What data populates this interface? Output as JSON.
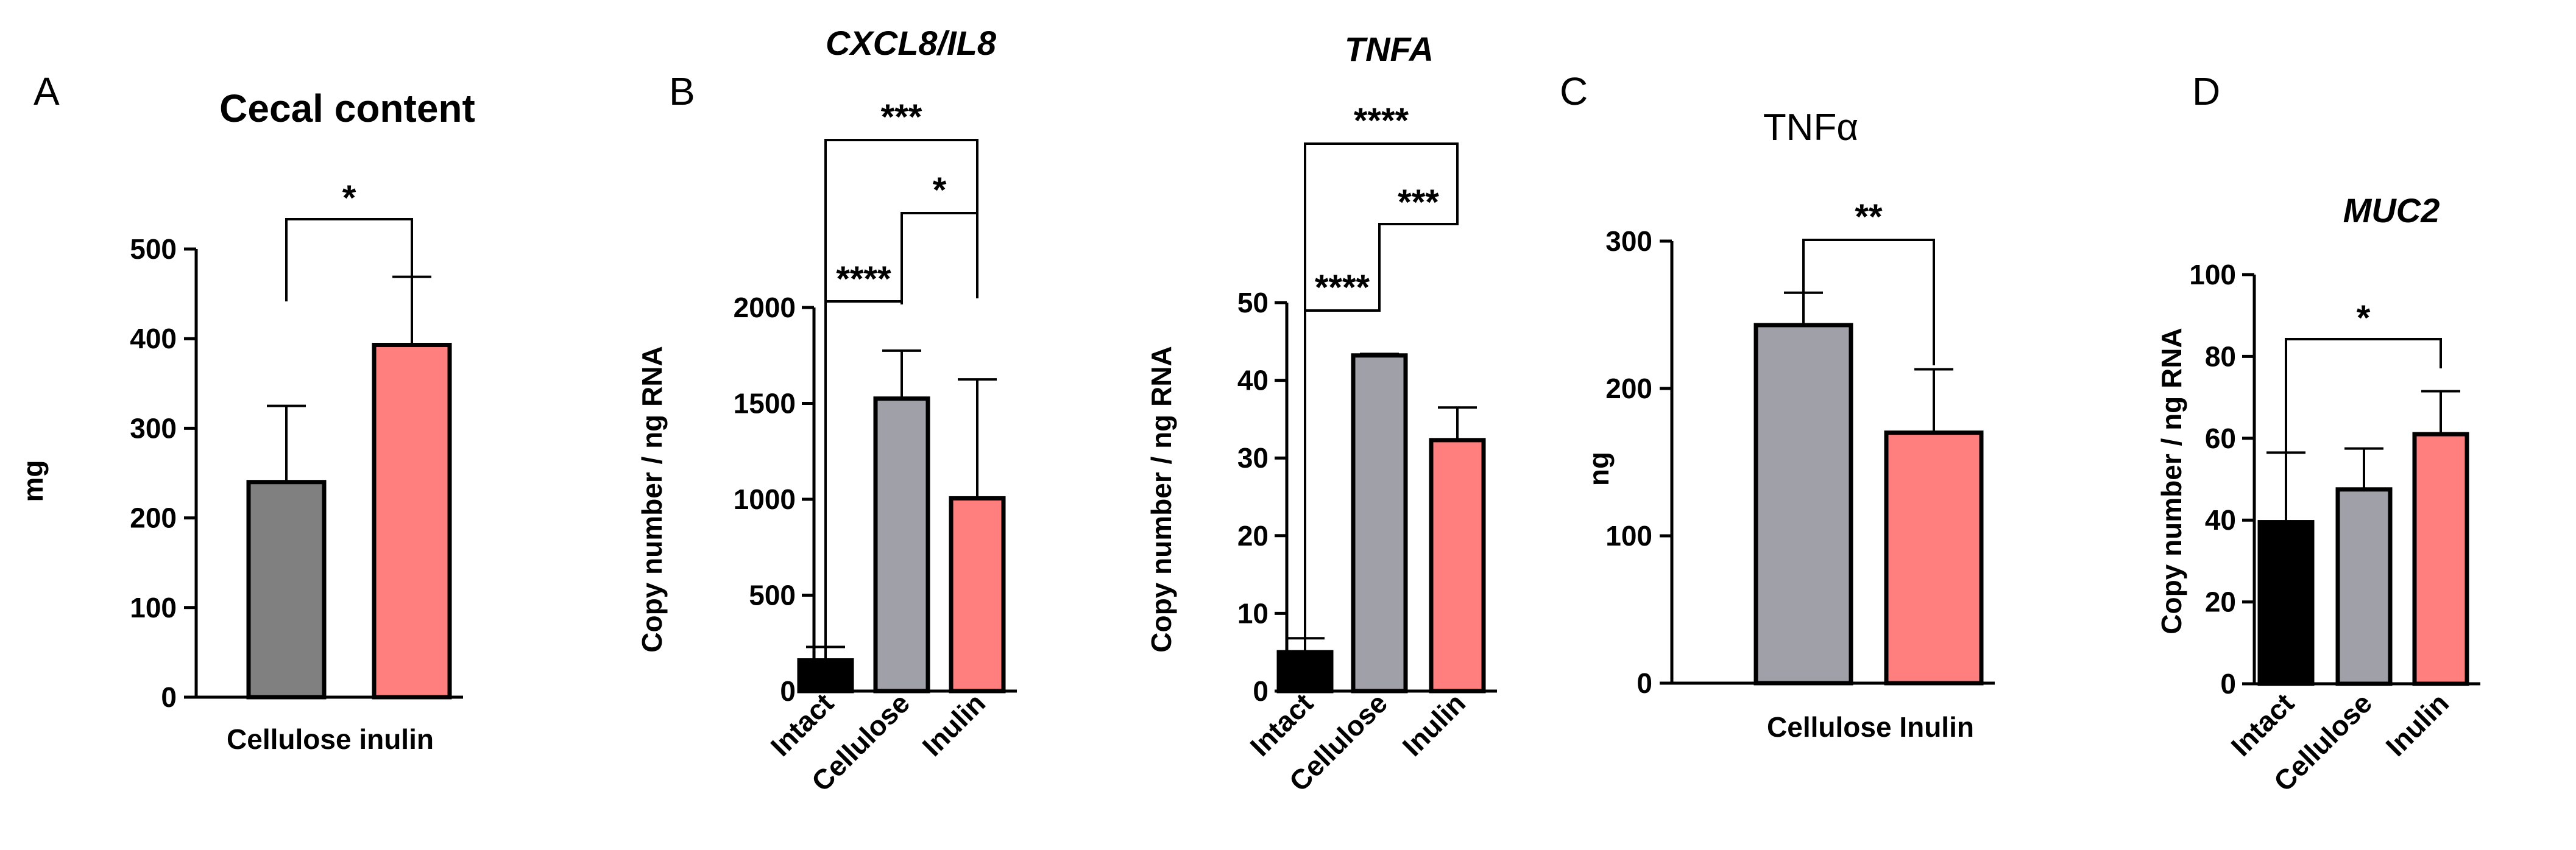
{
  "chart_data": [
    {
      "type": "bar",
      "panel": "A",
      "title": "Cecal content",
      "title_style": "bold",
      "ylabel": "mg",
      "xlabel": "",
      "categories": [
        "Cellulose",
        "inulin"
      ],
      "category_label": "Cellulose inulin",
      "values": [
        240,
        393
      ],
      "errors": [
        85,
        76
      ],
      "colors": [
        "#808080",
        "#ff7f7f"
      ],
      "ylim": [
        0,
        500
      ],
      "yticks": [
        0,
        100,
        200,
        300,
        400,
        500
      ],
      "significance": [
        {
          "from": 0,
          "to": 1,
          "label": "*"
        }
      ]
    },
    {
      "type": "bar",
      "panel": "B",
      "title": "CXCL8/IL8",
      "title_style": "italic",
      "ylabel": "Copy number / ng RNA",
      "xlabel": "",
      "categories": [
        "Intact",
        "Cellulose",
        "Inulin"
      ],
      "values": [
        160,
        1525,
        1005
      ],
      "errors": [
        70,
        250,
        620
      ],
      "colors": [
        "#000000",
        "#a0a0a8",
        "#ff7f7f"
      ],
      "ylim": [
        0,
        2000
      ],
      "yticks": [
        0,
        500,
        1000,
        1500,
        2000
      ],
      "significance": [
        {
          "from": 0,
          "to": 2,
          "label": "***"
        },
        {
          "from": 1,
          "to": 2,
          "label": "*"
        },
        {
          "from": 0,
          "to": 1,
          "label": "****"
        }
      ]
    },
    {
      "type": "bar",
      "panel": "",
      "title": "TNFA",
      "title_style": "italic",
      "ylabel": "Copy number / ng RNA",
      "xlabel": "",
      "categories": [
        "Intact",
        "Cellulose",
        "Inulin"
      ],
      "values": [
        5,
        43.2,
        32.3
      ],
      "errors": [
        1.8,
        0.2,
        4.2
      ],
      "colors": [
        "#000000",
        "#a0a0a8",
        "#ff7f7f"
      ],
      "ylim": [
        0,
        50
      ],
      "yticks": [
        0,
        10,
        20,
        30,
        40,
        50
      ],
      "significance": [
        {
          "from": 0,
          "to": 2,
          "label": "****"
        },
        {
          "from": 1,
          "to": 2,
          "label": "***"
        },
        {
          "from": 0,
          "to": 1,
          "label": "****"
        }
      ]
    },
    {
      "type": "bar",
      "panel": "C",
      "title": "TNFα",
      "title_style": "plain",
      "ylabel": "ng",
      "xlabel": "",
      "categories": [
        "Cellulose",
        "Inulin"
      ],
      "category_label": "Cellulose Inulin",
      "values": [
        243,
        170
      ],
      "errors": [
        22,
        43
      ],
      "colors": [
        "#a0a0a8",
        "#ff7f7f"
      ],
      "ylim": [
        0,
        300
      ],
      "yticks": [
        0,
        100,
        200,
        300
      ],
      "significance": [
        {
          "from": 0,
          "to": 1,
          "label": "**"
        }
      ]
    },
    {
      "type": "bar",
      "panel": "D",
      "title": "MUC2",
      "title_style": "italic",
      "ylabel": "Copy number / ng RNA",
      "xlabel": "",
      "categories": [
        "Intact",
        "Cellulose",
        "Inulin"
      ],
      "values": [
        39.5,
        47.5,
        61
      ],
      "errors": [
        17,
        10,
        10.5
      ],
      "colors": [
        "#000000",
        "#a0a0a8",
        "#ff7f7f"
      ],
      "ylim": [
        0,
        100
      ],
      "yticks": [
        0,
        20,
        40,
        60,
        80,
        100
      ],
      "significance": [
        {
          "from": 0,
          "to": 2,
          "label": "*"
        }
      ]
    }
  ]
}
